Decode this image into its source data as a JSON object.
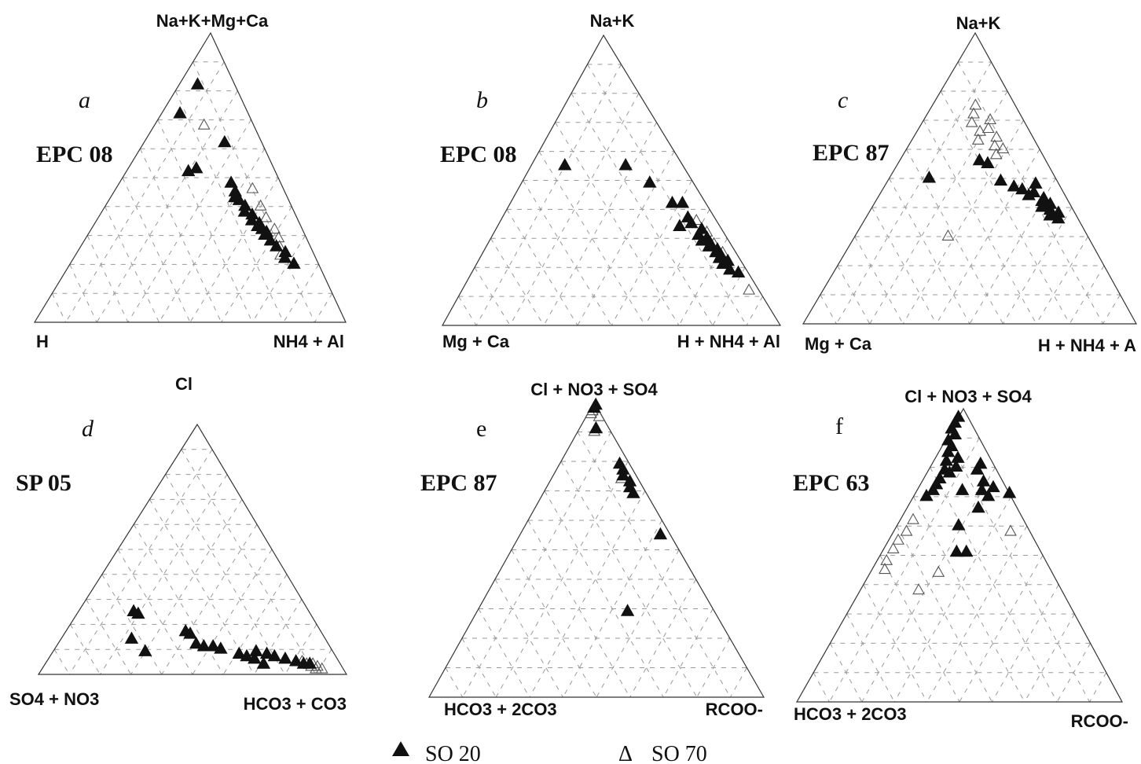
{
  "chart_data": [
    {
      "type": "ternary",
      "panel": "a",
      "site": "EPC 08",
      "vertices": {
        "top": "Na+K+Mg+Ca",
        "left": "H",
        "right": "NH4 + Al"
      },
      "series": [
        {
          "name": "SO 20",
          "points": [
            [
              0.82,
              0.12,
              0.06
            ],
            [
              0.72,
              0.22,
              0.06
            ],
            [
              0.62,
              0.12,
              0.26
            ],
            [
              0.53,
              0.25,
              0.22
            ],
            [
              0.52,
              0.28,
              0.2
            ],
            [
              0.48,
              0.16,
              0.36
            ],
            [
              0.45,
              0.16,
              0.39
            ],
            [
              0.43,
              0.17,
              0.4
            ],
            [
              0.42,
              0.16,
              0.42
            ],
            [
              0.4,
              0.15,
              0.45
            ],
            [
              0.38,
              0.16,
              0.46
            ],
            [
              0.37,
              0.14,
              0.49
            ],
            [
              0.35,
              0.15,
              0.5
            ],
            [
              0.34,
              0.13,
              0.53
            ],
            [
              0.33,
              0.14,
              0.53
            ],
            [
              0.32,
              0.13,
              0.55
            ],
            [
              0.31,
              0.12,
              0.57
            ],
            [
              0.3,
              0.13,
              0.57
            ],
            [
              0.28,
              0.12,
              0.6
            ],
            [
              0.26,
              0.11,
              0.63
            ],
            [
              0.24,
              0.09,
              0.67
            ],
            [
              0.22,
              0.1,
              0.68
            ],
            [
              0.2,
              0.08,
              0.72
            ]
          ]
        },
        {
          "name": "SO 70",
          "points": [
            [
              0.68,
              0.16,
              0.16
            ],
            [
              0.46,
              0.1,
              0.44
            ],
            [
              0.4,
              0.1,
              0.5
            ],
            [
              0.36,
              0.1,
              0.54
            ],
            [
              0.32,
              0.09,
              0.59
            ],
            [
              0.29,
              0.09,
              0.62
            ],
            [
              0.26,
              0.1,
              0.64
            ],
            [
              0.23,
              0.11,
              0.66
            ]
          ]
        }
      ]
    },
    {
      "type": "ternary",
      "panel": "b",
      "site": "EPC 08",
      "vertices": {
        "top": "Na+K",
        "left": "Mg + Ca",
        "right": "H + NH4 + Al"
      },
      "series": [
        {
          "name": "SO 20",
          "points": [
            [
              0.55,
              0.35,
              0.1
            ],
            [
              0.55,
              0.17,
              0.28
            ],
            [
              0.49,
              0.13,
              0.38
            ],
            [
              0.42,
              0.1,
              0.48
            ],
            [
              0.42,
              0.07,
              0.51
            ],
            [
              0.37,
              0.08,
              0.55
            ],
            [
              0.35,
              0.08,
              0.57
            ],
            [
              0.34,
              0.12,
              0.54
            ],
            [
              0.33,
              0.06,
              0.61
            ],
            [
              0.31,
              0.08,
              0.61
            ],
            [
              0.3,
              0.06,
              0.64
            ],
            [
              0.29,
              0.08,
              0.63
            ],
            [
              0.28,
              0.06,
              0.66
            ],
            [
              0.27,
              0.07,
              0.66
            ],
            [
              0.26,
              0.05,
              0.69
            ],
            [
              0.25,
              0.06,
              0.69
            ],
            [
              0.24,
              0.05,
              0.71
            ],
            [
              0.23,
              0.06,
              0.71
            ],
            [
              0.22,
              0.04,
              0.74
            ],
            [
              0.21,
              0.06,
              0.73
            ],
            [
              0.19,
              0.05,
              0.76
            ],
            [
              0.18,
              0.03,
              0.79
            ]
          ]
        },
        {
          "name": "SO 70",
          "points": [
            [
              0.36,
              0.06,
              0.58
            ],
            [
              0.32,
              0.05,
              0.63
            ],
            [
              0.28,
              0.05,
              0.67
            ],
            [
              0.25,
              0.04,
              0.71
            ],
            [
              0.12,
              0.03,
              0.85
            ]
          ]
        }
      ]
    },
    {
      "type": "ternary",
      "panel": "c",
      "site": "EPC 87",
      "vertices": {
        "top": "Na+K",
        "left": "Mg + Ca",
        "right": "H + NH4 + A"
      },
      "series": [
        {
          "name": "SO 20",
          "points": [
            [
              0.56,
              0.2,
              0.24
            ],
            [
              0.55,
              0.18,
              0.27
            ],
            [
              0.5,
              0.38,
              0.12
            ],
            [
              0.49,
              0.17,
              0.34
            ],
            [
              0.48,
              0.07,
              0.45
            ],
            [
              0.47,
              0.14,
              0.39
            ],
            [
              0.46,
              0.12,
              0.42
            ],
            [
              0.45,
              0.09,
              0.46
            ],
            [
              0.44,
              0.11,
              0.45
            ],
            [
              0.43,
              0.07,
              0.5
            ],
            [
              0.42,
              0.08,
              0.5
            ],
            [
              0.41,
              0.06,
              0.53
            ],
            [
              0.4,
              0.09,
              0.51
            ],
            [
              0.39,
              0.07,
              0.54
            ],
            [
              0.38,
              0.05,
              0.57
            ],
            [
              0.37,
              0.08,
              0.55
            ],
            [
              0.36,
              0.06,
              0.58
            ]
          ]
        },
        {
          "name": "SO 70",
          "points": [
            [
              0.75,
              0.12,
              0.13
            ],
            [
              0.72,
              0.14,
              0.14
            ],
            [
              0.7,
              0.1,
              0.2
            ],
            [
              0.69,
              0.16,
              0.15
            ],
            [
              0.67,
              0.12,
              0.21
            ],
            [
              0.66,
              0.15,
              0.19
            ],
            [
              0.64,
              0.11,
              0.25
            ],
            [
              0.63,
              0.17,
              0.2
            ],
            [
              0.61,
              0.13,
              0.26
            ],
            [
              0.6,
              0.11,
              0.29
            ],
            [
              0.58,
              0.14,
              0.28
            ],
            [
              0.3,
              0.42,
              0.28
            ]
          ]
        }
      ]
    },
    {
      "type": "ternary",
      "panel": "d",
      "site": "SP 05",
      "vertices": {
        "top": "Cl",
        "left": "SO4 + NO3",
        "right": "HCO3 + CO3"
      },
      "series": [
        {
          "name": "SO 20",
          "points": [
            [
              0.25,
              0.57,
              0.18
            ],
            [
              0.24,
              0.56,
              0.2
            ],
            [
              0.14,
              0.63,
              0.23
            ],
            [
              0.09,
              0.61,
              0.3
            ],
            [
              0.17,
              0.44,
              0.39
            ],
            [
              0.16,
              0.43,
              0.41
            ],
            [
              0.12,
              0.43,
              0.45
            ],
            [
              0.11,
              0.41,
              0.48
            ],
            [
              0.11,
              0.38,
              0.51
            ],
            [
              0.1,
              0.36,
              0.54
            ],
            [
              0.08,
              0.31,
              0.61
            ],
            [
              0.07,
              0.29,
              0.64
            ],
            [
              0.06,
              0.27,
              0.67
            ],
            [
              0.09,
              0.25,
              0.66
            ],
            [
              0.08,
              0.22,
              0.7
            ],
            [
              0.07,
              0.2,
              0.73
            ],
            [
              0.04,
              0.25,
              0.71
            ],
            [
              0.06,
              0.17,
              0.77
            ],
            [
              0.05,
              0.14,
              0.81
            ],
            [
              0.04,
              0.12,
              0.84
            ],
            [
              0.04,
              0.1,
              0.86
            ]
          ]
        },
        {
          "name": "SO 70",
          "points": [
            [
              0.05,
              0.12,
              0.83
            ],
            [
              0.04,
              0.11,
              0.85
            ],
            [
              0.04,
              0.09,
              0.87
            ],
            [
              0.03,
              0.1,
              0.87
            ],
            [
              0.03,
              0.08,
              0.89
            ],
            [
              0.02,
              0.09,
              0.89
            ],
            [
              0.02,
              0.07,
              0.91
            ]
          ]
        }
      ]
    },
    {
      "type": "ternary",
      "panel": "e",
      "site": "EPC 87",
      "vertices": {
        "top": "Cl + NO3 + SO4",
        "left": "HCO3 + 2CO3",
        "right": "RCOO-"
      },
      "series": [
        {
          "name": "SO 20",
          "points": [
            [
              0.99,
              0.0,
              0.01
            ],
            [
              0.98,
              0.01,
              0.01
            ],
            [
              0.91,
              0.04,
              0.05
            ],
            [
              0.79,
              0.03,
              0.18
            ],
            [
              0.77,
              0.03,
              0.2
            ],
            [
              0.75,
              0.04,
              0.21
            ],
            [
              0.73,
              0.03,
              0.24
            ],
            [
              0.71,
              0.04,
              0.25
            ],
            [
              0.69,
              0.04,
              0.27
            ],
            [
              0.55,
              0.03,
              0.42
            ],
            [
              0.29,
              0.26,
              0.45
            ]
          ]
        },
        {
          "name": "SO 70",
          "points": [
            [
              0.97,
              0.02,
              0.01
            ],
            [
              0.96,
              0.03,
              0.01
            ],
            [
              0.95,
              0.01,
              0.04
            ],
            [
              0.9,
              0.05,
              0.05
            ],
            [
              0.74,
              0.05,
              0.21
            ]
          ]
        }
      ]
    },
    {
      "type": "ternary",
      "panel": "f",
      "site": "EPC 63",
      "vertices": {
        "top": "Cl + NO3 + SO4",
        "left": "HCO3 + 2CO3",
        "right": "RCOO-"
      },
      "series": [
        {
          "name": "SO 20",
          "points": [
            [
              0.97,
              0.03,
              0.0
            ],
            [
              0.95,
              0.05,
              0.0
            ],
            [
              0.93,
              0.07,
              0.0
            ],
            [
              0.91,
              0.07,
              0.02
            ],
            [
              0.89,
              0.1,
              0.01
            ],
            [
              0.87,
              0.1,
              0.03
            ],
            [
              0.85,
              0.12,
              0.03
            ],
            [
              0.83,
              0.1,
              0.07
            ],
            [
              0.82,
              0.14,
              0.04
            ],
            [
              0.8,
              0.12,
              0.08
            ],
            [
              0.79,
              0.16,
              0.05
            ],
            [
              0.78,
              0.15,
              0.07
            ],
            [
              0.76,
              0.19,
              0.05
            ],
            [
              0.74,
              0.21,
              0.05
            ],
            [
              0.72,
              0.23,
              0.05
            ],
            [
              0.7,
              0.26,
              0.04
            ],
            [
              0.81,
              0.04,
              0.15
            ],
            [
              0.79,
              0.06,
              0.15
            ],
            [
              0.75,
              0.06,
              0.19
            ],
            [
              0.73,
              0.04,
              0.23
            ],
            [
              0.72,
              0.14,
              0.14
            ],
            [
              0.72,
              0.08,
              0.2
            ],
            [
              0.71,
              0.0,
              0.29
            ],
            [
              0.7,
              0.07,
              0.23
            ],
            [
              0.66,
              0.12,
              0.22
            ],
            [
              0.6,
              0.21,
              0.19
            ],
            [
              0.51,
              0.26,
              0.23
            ],
            [
              0.51,
              0.23,
              0.26
            ]
          ]
        },
        {
          "name": "SO 70",
          "points": [
            [
              0.62,
              0.34,
              0.04
            ],
            [
              0.58,
              0.38,
              0.04
            ],
            [
              0.55,
              0.42,
              0.03
            ],
            [
              0.52,
              0.45,
              0.03
            ],
            [
              0.48,
              0.49,
              0.03
            ],
            [
              0.45,
              0.51,
              0.04
            ],
            [
              0.58,
              0.06,
              0.36
            ],
            [
              0.44,
              0.35,
              0.21
            ],
            [
              0.38,
              0.44,
              0.18
            ]
          ]
        }
      ]
    }
  ],
  "legend": {
    "items": [
      {
        "symbol": "▲",
        "label": "SO 20",
        "filled": true
      },
      {
        "symbol": "Δ",
        "label": "SO 70",
        "filled": false
      }
    ]
  }
}
